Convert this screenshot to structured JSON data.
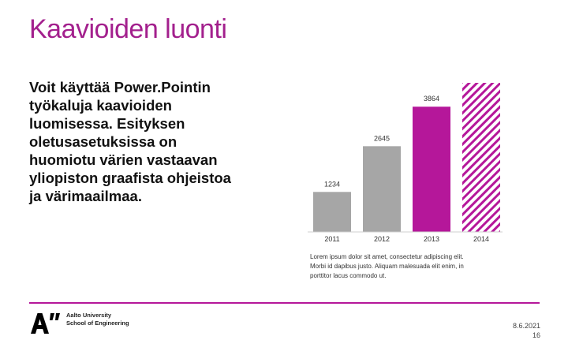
{
  "slide": {
    "title": "Kaavioiden luonti",
    "body_lines": [
      "Voit käyttää Power.Pointin",
      "työkaluja kaavioiden",
      "luomisessa. Esityksen",
      "oletusasetuksissa on",
      "huomiotu värien vastaavan",
      "yliopiston graafista ohjeistoa",
      "ja värimaailmaa."
    ],
    "caption_lines": [
      "Lorem ipsum dolor sit amet, consectetur adipiscing elit.",
      "Morbi id dapibus justo. Aliquam malesuada elit enim, in",
      "porttitor lacus commodo ut."
    ]
  },
  "footer": {
    "logo_text": "A”",
    "university_line1": "Aalto University",
    "university_line2": "School of Engineering",
    "date": "8.6.2021",
    "page": "16"
  },
  "colors": {
    "accent": "#a3208d",
    "bar_gray": "#a6a6a6",
    "bar_highlight": "#b5179a",
    "divider": "#b5179a"
  },
  "chart_data": {
    "type": "bar",
    "categories": [
      "2011",
      "2012",
      "2013",
      "2014"
    ],
    "values": [
      1234,
      2645,
      3864,
      4600
    ],
    "data_labels": [
      "1234",
      "2645",
      "3864",
      ""
    ],
    "bar_styles": [
      "gray",
      "gray",
      "solid-magenta",
      "hatched-magenta"
    ],
    "title": "",
    "xlabel": "",
    "ylabel": "",
    "ylim": [
      0,
      4600
    ]
  }
}
